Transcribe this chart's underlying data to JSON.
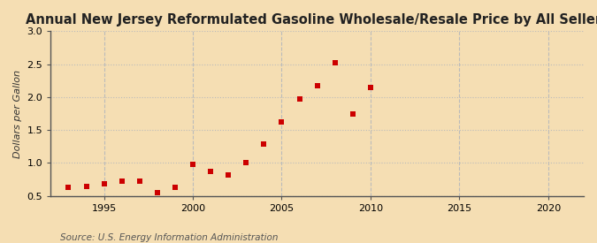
{
  "title": "Annual New Jersey Reformulated Gasoline Wholesale/Resale Price by All Sellers",
  "ylabel": "Dollars per Gallon",
  "source": "Source: U.S. Energy Information Administration",
  "background_color": "#f5deb3",
  "plot_bg_color": "#f5e6c8",
  "xlim": [
    1992,
    2022
  ],
  "ylim": [
    0.5,
    3.0
  ],
  "xticks": [
    1995,
    2000,
    2005,
    2010,
    2015,
    2020
  ],
  "yticks": [
    0.5,
    1.0,
    1.5,
    2.0,
    2.5,
    3.0
  ],
  "data": [
    {
      "year": 1993,
      "value": 0.63
    },
    {
      "year": 1994,
      "value": 0.65
    },
    {
      "year": 1995,
      "value": 0.68
    },
    {
      "year": 1996,
      "value": 0.72
    },
    {
      "year": 1997,
      "value": 0.72
    },
    {
      "year": 1998,
      "value": 0.55
    },
    {
      "year": 1999,
      "value": 0.63
    },
    {
      "year": 2000,
      "value": 0.98
    },
    {
      "year": 2001,
      "value": 0.87
    },
    {
      "year": 2002,
      "value": 0.82
    },
    {
      "year": 2003,
      "value": 1.0
    },
    {
      "year": 2004,
      "value": 1.29
    },
    {
      "year": 2005,
      "value": 1.62
    },
    {
      "year": 2006,
      "value": 1.97
    },
    {
      "year": 2007,
      "value": 2.17
    },
    {
      "year": 2008,
      "value": 2.52
    },
    {
      "year": 2009,
      "value": 1.75
    },
    {
      "year": 2010,
      "value": 2.15
    }
  ],
  "marker_color": "#cc0000",
  "marker": "s",
  "marker_size": 4,
  "grid_color": "#bbbbbb",
  "grid_linestyle": ":",
  "vgrid_color": "#bbbbbb",
  "vgrid_linestyle": "--",
  "title_fontsize": 10.5,
  "label_fontsize": 8,
  "tick_fontsize": 8,
  "source_fontsize": 7.5
}
